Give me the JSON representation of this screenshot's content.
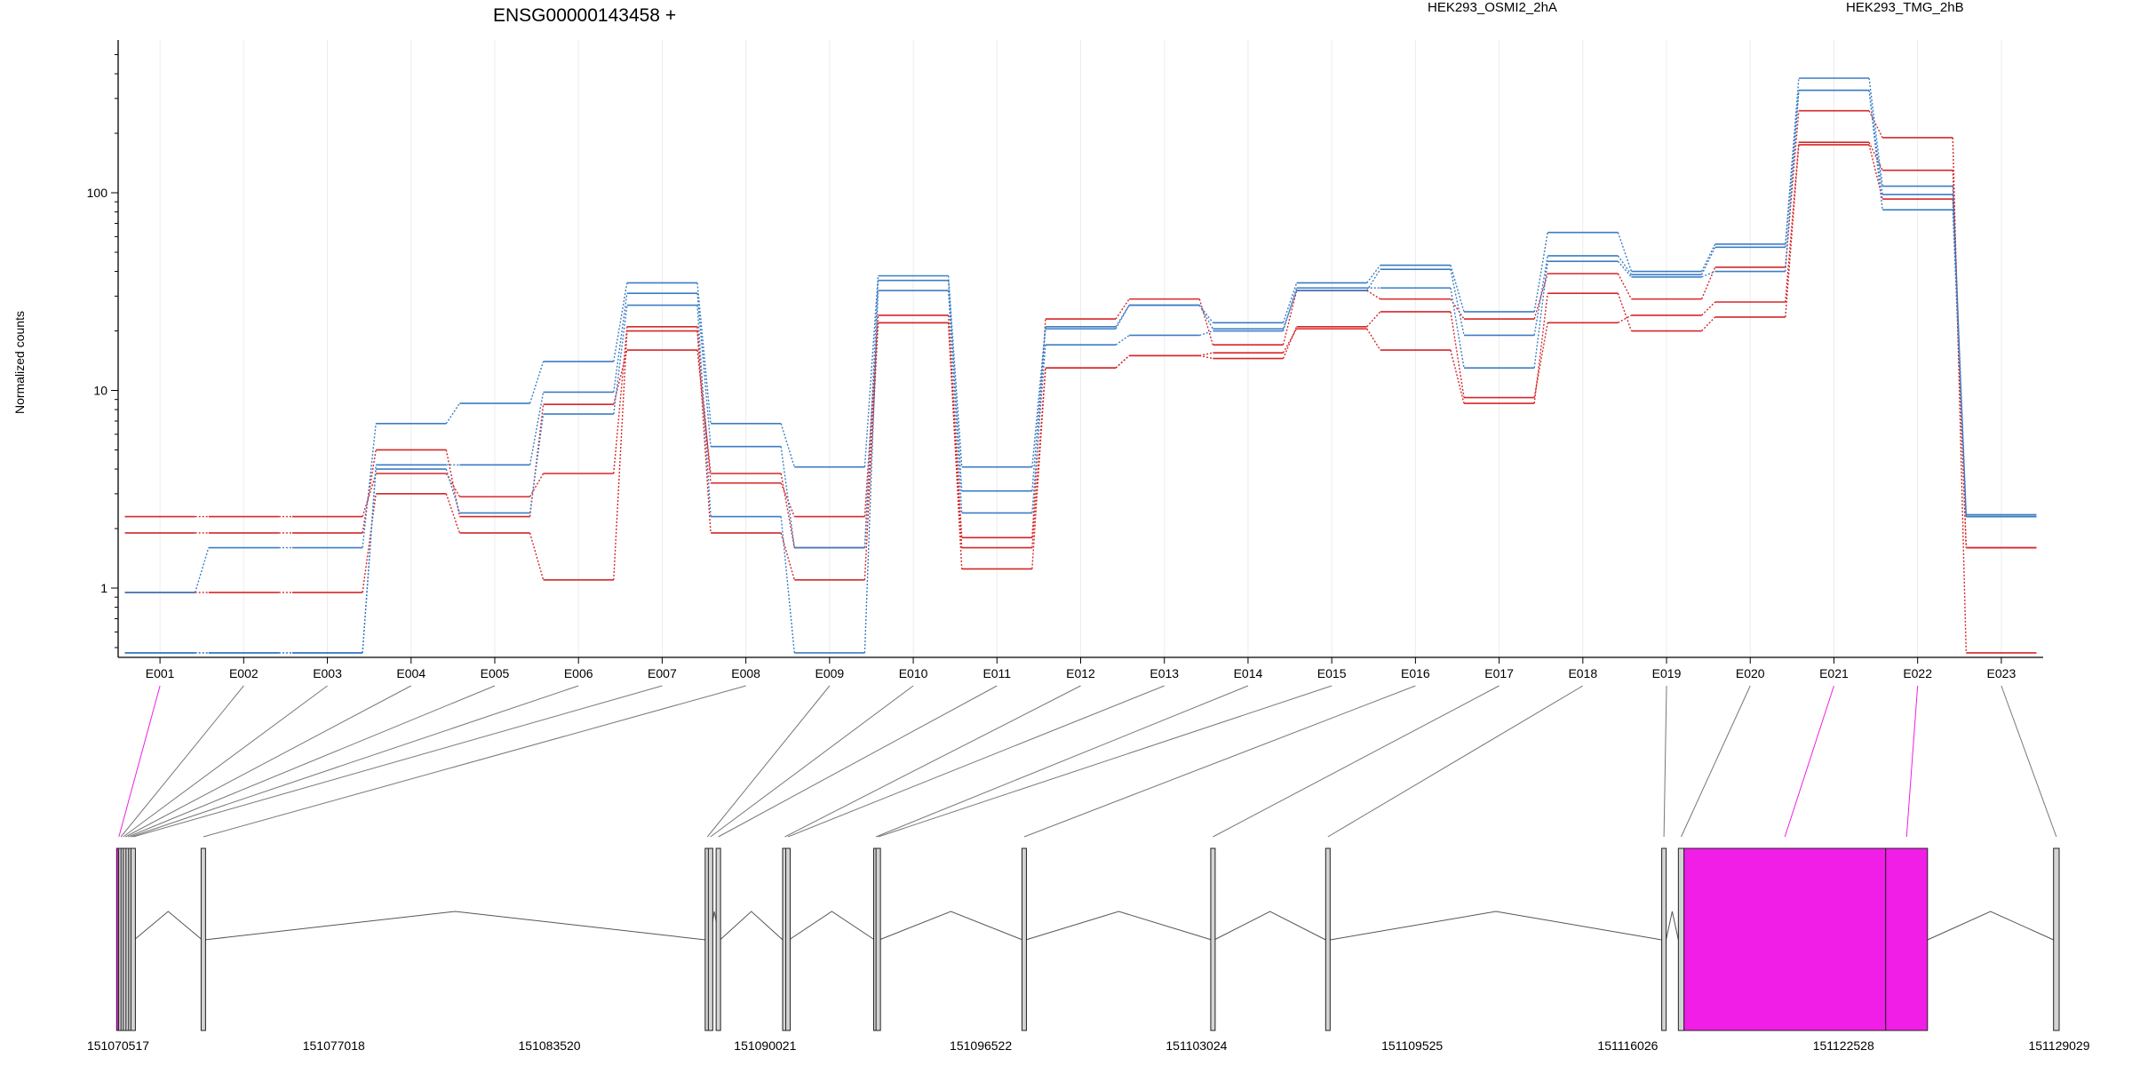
{
  "colors": {
    "osmi2": "#d62728",
    "tmg": "#3b7dc4",
    "highlight": "#f01ee6",
    "exon_fill": "#d3d3d3",
    "intron": "#555555"
  },
  "chart_data": {
    "type": "line",
    "title": "ENSG00000143458 +",
    "ylabel": "Normalized counts",
    "yscale": "log",
    "ylim": [
      0.45,
      500
    ],
    "yticks": [
      1,
      10,
      100
    ],
    "ytick_labels": [
      "1",
      "10",
      "100"
    ],
    "grid": "vertical light gridlines at exon bins",
    "legend": [
      {
        "name": "HEK293_OSMI2_2hA",
        "color": "#d62728",
        "position": "top-center"
      },
      {
        "name": "HEK293_TMG_2hB",
        "color": "#3b7dc4",
        "position": "top-right"
      }
    ],
    "categories": [
      "E001",
      "E002",
      "E003",
      "E004",
      "E005",
      "E006",
      "E007",
      "E008",
      "E009",
      "E010",
      "E011",
      "E012",
      "E013",
      "E014",
      "E015",
      "E016",
      "E017",
      "E018",
      "E019",
      "E020",
      "E021",
      "E022",
      "E023"
    ],
    "series": [
      {
        "group": "HEK293_OSMI2_2hA",
        "color": "#d62728",
        "values": [
          2.3,
          2.3,
          2.3,
          3.8,
          2.9,
          3.8,
          21,
          3.4,
          2.3,
          24,
          1.8,
          23,
          29,
          17,
          32,
          29,
          23,
          39,
          29,
          42,
          260,
          190,
          0.47
        ]
      },
      {
        "group": "HEK293_OSMI2_2hA",
        "color": "#d62728",
        "values": [
          1.9,
          1.9,
          1.9,
          5.0,
          2.3,
          8.5,
          16,
          3.8,
          1.6,
          22,
          1.6,
          13,
          15,
          14.5,
          21,
          25,
          9.2,
          22,
          24,
          28,
          180,
          130,
          1.6
        ]
      },
      {
        "group": "HEK293_OSMI2_2hA",
        "color": "#d62728",
        "values": [
          0.95,
          0.95,
          0.95,
          3.0,
          1.9,
          1.1,
          20,
          1.9,
          1.1,
          22,
          1.25,
          13,
          15,
          15.5,
          20.5,
          16,
          8.6,
          31,
          20,
          23.5,
          175,
          93,
          1.6
        ]
      },
      {
        "group": "HEK293_TMG_2hB",
        "color": "#3b7dc4",
        "values": [
          0.95,
          1.6,
          1.6,
          6.8,
          8.6,
          14,
          35,
          6.8,
          4.1,
          38,
          4.1,
          21,
          27,
          22,
          35,
          43,
          25,
          63,
          40,
          55,
          380,
          108,
          2.35
        ]
      },
      {
        "group": "HEK293_TMG_2hB",
        "color": "#3b7dc4",
        "values": [
          0.47,
          0.47,
          0.47,
          4.2,
          4.2,
          9.8,
          31,
          5.2,
          1.6,
          36,
          3.1,
          20.5,
          27,
          20.5,
          32,
          41,
          19,
          48,
          38.5,
          53,
          330,
          98,
          2.3
        ]
      },
      {
        "group": "HEK293_TMG_2hB",
        "color": "#3b7dc4",
        "values": [
          0.47,
          0.47,
          0.47,
          4.0,
          2.4,
          7.6,
          27,
          2.3,
          0.47,
          32,
          2.4,
          17,
          19,
          20,
          33,
          33,
          13,
          45,
          37.5,
          40,
          330,
          82,
          2.3
        ]
      }
    ],
    "gene_model": {
      "coord_range": [
        151070517,
        151129029
      ],
      "coord_ticks": [
        "151070517",
        "151077018",
        "151083520",
        "151090021",
        "151096522",
        "151103024",
        "151109525",
        "151116026",
        "151122528",
        "151129029"
      ],
      "exon_bins": [
        {
          "id": "E001",
          "start": 151070517,
          "end": 151070560,
          "highlight": true
        },
        {
          "id": "E002",
          "start": 151070560,
          "end": 151070640,
          "highlight": false
        },
        {
          "id": "E003",
          "start": 151070640,
          "end": 151070700,
          "highlight": false
        },
        {
          "id": "E004",
          "start": 151070700,
          "end": 151070780,
          "highlight": false
        },
        {
          "id": "E005",
          "start": 151070780,
          "end": 151070860,
          "highlight": false
        },
        {
          "id": "E006",
          "start": 151070860,
          "end": 151070940,
          "highlight": false
        },
        {
          "id": "E007",
          "start": 151070940,
          "end": 151071000,
          "highlight": false
        },
        {
          "id": "E008",
          "start": 151073050,
          "end": 151073120,
          "highlight": false
        },
        {
          "id": "E009",
          "start": 151088230,
          "end": 151088330,
          "highlight": false
        },
        {
          "id": "E010",
          "start": 151088330,
          "end": 151088420,
          "highlight": false
        },
        {
          "id": "E011",
          "start": 151088560,
          "end": 151088660,
          "highlight": false
        },
        {
          "id": "E012",
          "start": 151090550,
          "end": 151090680,
          "highlight": false
        },
        {
          "id": "E013",
          "start": 151090680,
          "end": 151090740,
          "highlight": false
        },
        {
          "id": "E014",
          "start": 151093320,
          "end": 151093400,
          "highlight": false
        },
        {
          "id": "E015",
          "start": 151093400,
          "end": 151093460,
          "highlight": false
        },
        {
          "id": "E016",
          "start": 151097780,
          "end": 151097880,
          "highlight": false
        },
        {
          "id": "E017",
          "start": 151103480,
          "end": 151103560,
          "highlight": false
        },
        {
          "id": "E018",
          "start": 151106920,
          "end": 151107050,
          "highlight": false
        },
        {
          "id": "E019",
          "start": 151117050,
          "end": 151117180,
          "highlight": false
        },
        {
          "id": "E020",
          "start": 151117550,
          "end": 151117720,
          "highlight": false
        },
        {
          "id": "E021",
          "start": 151117720,
          "end": 151123800,
          "highlight": true
        },
        {
          "id": "E022",
          "start": 151123800,
          "end": 151125060,
          "highlight": true
        },
        {
          "id": "E023",
          "start": 151128860,
          "end": 151129029,
          "highlight": false
        }
      ]
    }
  }
}
